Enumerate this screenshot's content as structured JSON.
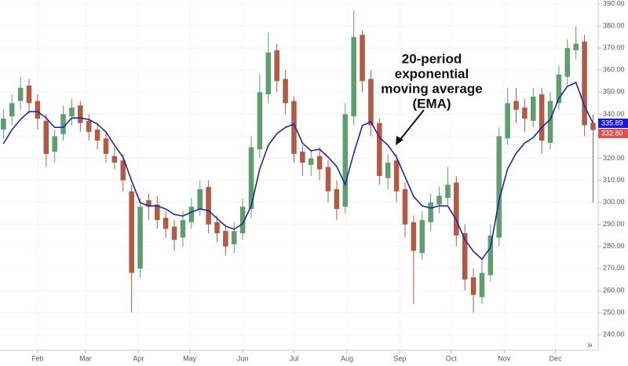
{
  "chart_data": {
    "type": "candlestick",
    "x": [
      12,
      17,
      22,
      27,
      32,
      37,
      42,
      47,
      52,
      57,
      62,
      67,
      72,
      77,
      82,
      87,
      92,
      97,
      102,
      107,
      112,
      117,
      122,
      127,
      132,
      137,
      142,
      147,
      152,
      157,
      162,
      167,
      172,
      177,
      182,
      187,
      192,
      197,
      202,
      207,
      212,
      217,
      222,
      227,
      232,
      237,
      242,
      247,
      252,
      257,
      262,
      267,
      272,
      277,
      282,
      287,
      292,
      297,
      302,
      307,
      312,
      317,
      322,
      327,
      332,
      337,
      342,
      347,
      352,
      357
    ],
    "open": [
      333,
      339,
      346,
      353,
      346,
      337,
      323,
      331,
      339,
      344,
      337,
      333,
      329,
      321,
      319,
      305,
      270,
      301,
      299,
      293,
      289,
      284,
      291,
      297,
      307,
      291,
      287,
      281,
      286,
      297,
      324,
      349,
      369,
      356,
      346,
      323,
      317,
      321,
      316,
      306,
      298,
      339,
      376,
      356,
      336,
      311,
      319,
      306,
      291,
      277,
      291,
      299,
      302,
      309,
      286,
      266,
      257,
      267,
      284,
      329,
      346,
      343,
      337,
      349,
      327,
      345,
      357,
      369,
      373,
      336
    ],
    "high": [
      342,
      349,
      357,
      356,
      349,
      340,
      333,
      344,
      347,
      346,
      340,
      336,
      332,
      325,
      322,
      308,
      302,
      304,
      303,
      296,
      292,
      296,
      302,
      310,
      310,
      294,
      290,
      291,
      302,
      330,
      358,
      377,
      372,
      360,
      348,
      326,
      324,
      325,
      319,
      310,
      345,
      387,
      378,
      360,
      338,
      322,
      322,
      309,
      294,
      296,
      304,
      307,
      316,
      312,
      290,
      270,
      275,
      290,
      334,
      352,
      352,
      347,
      352,
      352,
      350,
      362,
      374,
      380,
      376,
      340
    ],
    "low": [
      329,
      335,
      342,
      340,
      333,
      316,
      318,
      328,
      335,
      332,
      328,
      324,
      318,
      315,
      305,
      250,
      266,
      292,
      288,
      284,
      278,
      280,
      288,
      294,
      286,
      282,
      276,
      277,
      283,
      293,
      320,
      345,
      350,
      340,
      318,
      312,
      312,
      310,
      300,
      292,
      295,
      335,
      350,
      330,
      308,
      306,
      300,
      284,
      254,
      274,
      287,
      295,
      298,
      280,
      260,
      250,
      254,
      264,
      280,
      326,
      336,
      332,
      334,
      322,
      324,
      342,
      353,
      365,
      330,
      300
    ],
    "close": [
      338,
      345,
      352,
      345,
      338,
      322,
      330,
      340,
      343,
      336,
      332,
      328,
      322,
      318,
      310,
      268,
      298,
      298,
      292,
      288,
      283,
      292,
      298,
      306,
      290,
      286,
      280,
      287,
      298,
      325,
      350,
      368,
      355,
      345,
      322,
      318,
      320,
      315,
      305,
      297,
      340,
      375,
      355,
      335,
      312,
      318,
      305,
      290,
      278,
      292,
      300,
      303,
      308,
      285,
      265,
      258,
      268,
      285,
      330,
      345,
      342,
      338,
      348,
      328,
      346,
      358,
      370,
      372,
      335,
      332.8
    ],
    "up_color": "#5f9e6e",
    "down_color": "#b35a45",
    "ema": {
      "color": "#1f2a9e",
      "values": [
        326.6,
        333,
        337.6,
        341.2,
        341.2,
        338.3,
        334,
        334,
        338.3,
        338.3,
        337.6,
        335.5,
        331.9,
        325.9,
        320.5,
        309.8,
        299.9,
        298.4,
        298.4,
        297,
        294.5,
        293.8,
        295.6,
        297,
        296.3,
        292.7,
        289.2,
        287.8,
        290.3,
        298.4,
        315.2,
        325.9,
        331.2,
        334,
        335.5,
        326.9,
        323.4,
        324.1,
        320.5,
        316.3,
        308.1,
        322.3,
        334.8,
        336.6,
        329.4,
        325.9,
        320.5,
        311.6,
        302.7,
        298.4,
        297.4,
        298.4,
        298.4,
        292,
        283.1,
        277.8,
        274.2,
        279.6,
        300.9,
        315.2,
        322.3,
        326.9,
        329.4,
        334,
        337.6,
        347.2,
        352.6,
        354.4,
        343.7,
        335.89
      ]
    },
    "xlim": [
      10,
      360
    ],
    "xticks": [
      {
        "value": 32,
        "label": "Feb"
      },
      {
        "value": 60,
        "label": "Mar"
      },
      {
        "value": 91,
        "label": "Apr"
      },
      {
        "value": 121,
        "label": "May"
      },
      {
        "value": 152,
        "label": "Jun"
      },
      {
        "value": 182,
        "label": "Jul"
      },
      {
        "value": 213,
        "label": "Aug"
      },
      {
        "value": 244,
        "label": "Sep"
      },
      {
        "value": 274,
        "label": "Oct"
      },
      {
        "value": 305,
        "label": "Nov"
      },
      {
        "value": 335,
        "label": "Dec"
      }
    ],
    "ylim": [
      232.9,
      391.8
    ],
    "yticks": [
      {
        "value": 240,
        "label": "240.00"
      },
      {
        "value": 250,
        "label": "250.00"
      },
      {
        "value": 260,
        "label": "260.00"
      },
      {
        "value": 270,
        "label": "270.00"
      },
      {
        "value": 280,
        "label": "280.00"
      },
      {
        "value": 290,
        "label": "290.00"
      },
      {
        "value": 300,
        "label": "300.00"
      },
      {
        "value": 310,
        "label": "310.00"
      },
      {
        "value": 320,
        "label": "320.00"
      },
      {
        "value": 330,
        "label": "330.00"
      },
      {
        "value": 340,
        "label": "340.00"
      },
      {
        "value": 350,
        "label": "350.00"
      },
      {
        "value": 360,
        "label": "360.00"
      },
      {
        "value": 370,
        "label": "370.00"
      },
      {
        "value": 380,
        "label": "380.00"
      },
      {
        "value": 390,
        "label": "390.00"
      }
    ],
    "grid": true,
    "price_labels": [
      {
        "value": 335.89,
        "label": "335.89",
        "color": "#1a1ad6"
      },
      {
        "value": 332.8,
        "label": "332.80",
        "color": "#d9534f"
      }
    ],
    "annotation": [
      "20-period",
      "exponential",
      "moving average",
      "(EMA)"
    ],
    "nav_icon": "»"
  }
}
